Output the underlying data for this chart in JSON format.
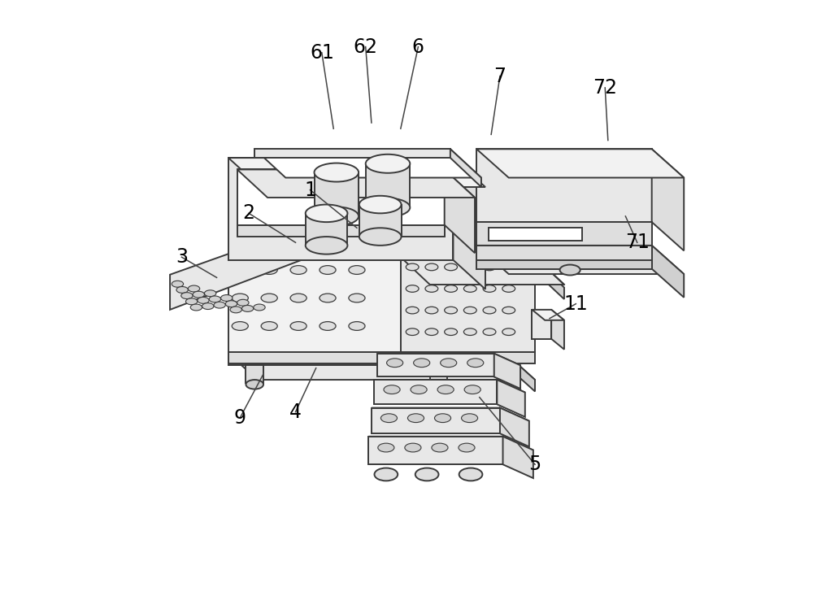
{
  "bg_color": "#ffffff",
  "lc": "#3a3a3a",
  "lw": 1.4,
  "white": "#ffffff",
  "light1": "#f2f2f2",
  "light2": "#e8e8e8",
  "light3": "#dedede",
  "light4": "#d0d0d0",
  "light5": "#c4c4c4",
  "label_fs": 17,
  "labels": {
    "1": [
      0.335,
      0.685,
      0.415,
      0.62
    ],
    "2": [
      0.23,
      0.645,
      0.31,
      0.595
    ],
    "3": [
      0.115,
      0.57,
      0.175,
      0.535
    ],
    "4": [
      0.31,
      0.305,
      0.345,
      0.38
    ],
    "5": [
      0.72,
      0.215,
      0.625,
      0.33
    ],
    "6": [
      0.52,
      0.93,
      0.49,
      0.79
    ],
    "61": [
      0.355,
      0.92,
      0.375,
      0.79
    ],
    "62": [
      0.43,
      0.93,
      0.44,
      0.8
    ],
    "7": [
      0.66,
      0.88,
      0.645,
      0.78
    ],
    "71": [
      0.895,
      0.595,
      0.875,
      0.64
    ],
    "72": [
      0.84,
      0.86,
      0.845,
      0.77
    ],
    "9": [
      0.215,
      0.295,
      0.255,
      0.37
    ],
    "11": [
      0.79,
      0.49,
      0.745,
      0.465
    ]
  }
}
